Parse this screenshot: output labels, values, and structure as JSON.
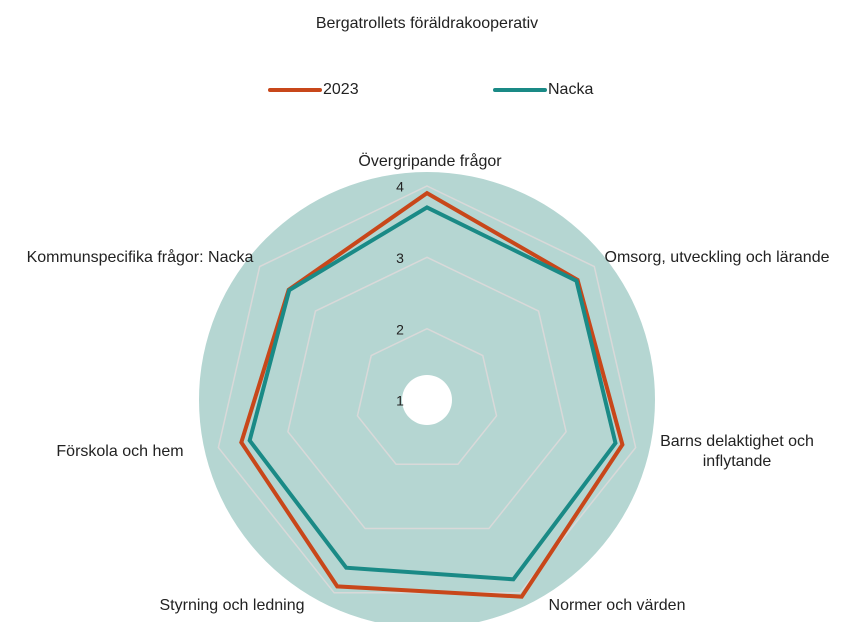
{
  "chart_data": {
    "type": "radar",
    "title": "Bergatrollets föräldrakooperativ",
    "categories": [
      "Övergripande frågor",
      "Omsorg, utveckling och lärande",
      "Barns delaktighet och inflytande",
      "Normer och värden",
      "Styrning och ledning",
      "Förskola och hem",
      "Kommunspecifika frågor: Nacka"
    ],
    "series": [
      {
        "name": "2023",
        "color": "#c8471a",
        "values": [
          3.9,
          3.7,
          3.81,
          4.06,
          3.9,
          3.67,
          3.48
        ]
      },
      {
        "name": "Nacka",
        "color": "#1a8a86",
        "values": [
          3.7,
          3.68,
          3.71,
          3.79,
          3.61,
          3.55,
          3.47
        ]
      }
    ],
    "ylim": [
      1,
      4
    ],
    "yticks": [
      1,
      2,
      3,
      4
    ],
    "grid": true,
    "legend": "top"
  }
}
